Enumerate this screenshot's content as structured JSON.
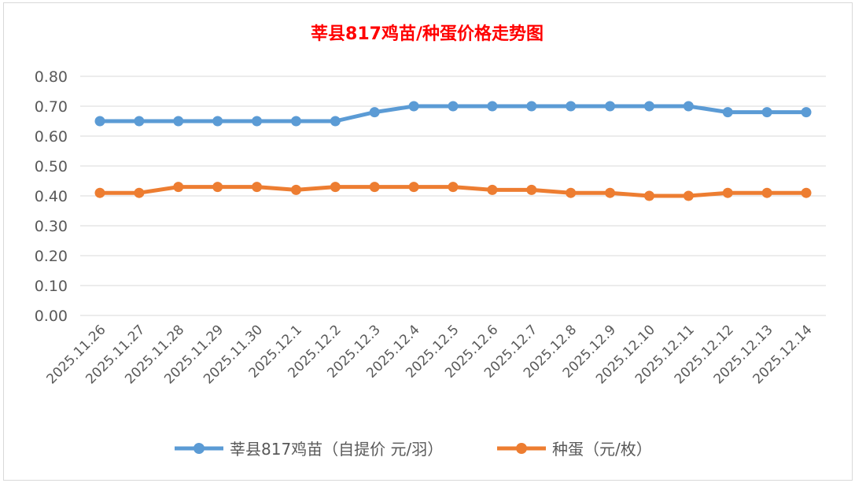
{
  "chart_data": {
    "type": "line",
    "title": "莘县817鸡苗/种蛋价格走势图",
    "title_color": "#ff0000",
    "categories": [
      "2025.11.26",
      "2025.11.27",
      "2025.11.28",
      "2025.11.29",
      "2025.11.30",
      "2025.12.1",
      "2025.12.2",
      "2025.12.3",
      "2025.12.4",
      "2025.12.5",
      "2025.12.6",
      "2025.12.7",
      "2025.12.8",
      "2025.12.9",
      "2025.12.10",
      "2025.12.11",
      "2025.12.12",
      "2025.12.13",
      "2025.12.14"
    ],
    "series": [
      {
        "name": "莘县817鸡苗（自提价 元/羽）",
        "color": "#5b9bd5",
        "values": [
          0.65,
          0.65,
          0.65,
          0.65,
          0.65,
          0.65,
          0.65,
          0.68,
          0.7,
          0.7,
          0.7,
          0.7,
          0.7,
          0.7,
          0.7,
          0.7,
          0.68,
          0.68,
          0.68
        ]
      },
      {
        "name": "种蛋（元/枚）",
        "color": "#ed7d31",
        "values": [
          0.41,
          0.41,
          0.43,
          0.43,
          0.43,
          0.42,
          0.43,
          0.43,
          0.43,
          0.43,
          0.42,
          0.42,
          0.41,
          0.41,
          0.4,
          0.4,
          0.41,
          0.41,
          0.41
        ]
      }
    ],
    "yticks": [
      "0.00",
      "0.10",
      "0.20",
      "0.30",
      "0.40",
      "0.50",
      "0.60",
      "0.70",
      "0.80"
    ],
    "ylim": [
      0,
      0.8
    ],
    "grid": true,
    "legend": "bottom",
    "markers": "circle"
  }
}
